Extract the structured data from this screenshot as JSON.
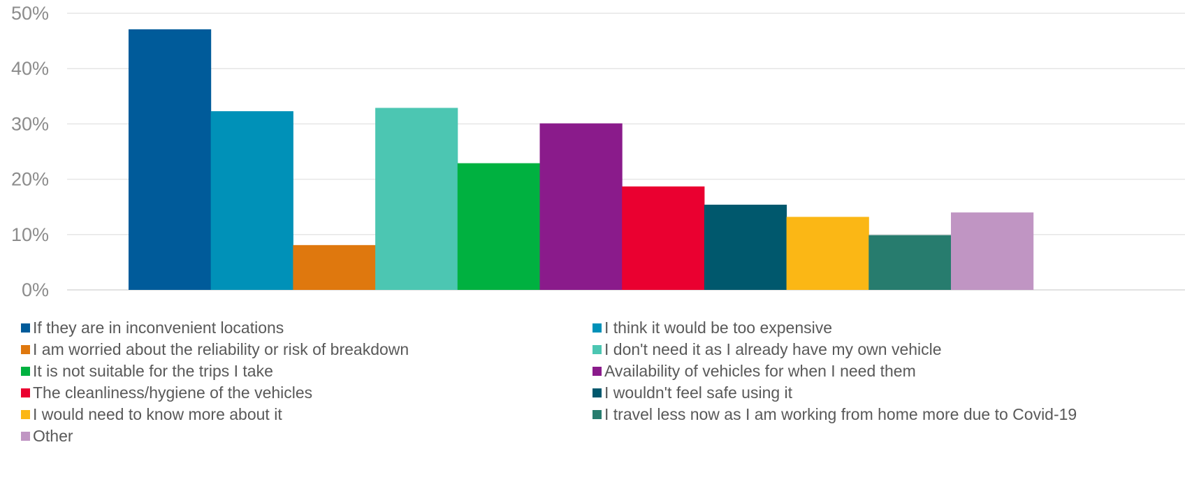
{
  "chart_data": {
    "type": "bar",
    "title": "",
    "xlabel": "",
    "ylabel": "",
    "ylim": [
      0,
      50
    ],
    "y_ticks": [
      "0%",
      "10%",
      "20%",
      "30%",
      "40%",
      "50%"
    ],
    "grid": true,
    "legend_position": "bottom",
    "series": [
      {
        "name": "If they are in inconvenient locations",
        "value": 47.1,
        "color": "#005B9A"
      },
      {
        "name": "I think it would be too expensive",
        "value": 32.3,
        "color": "#0091B8"
      },
      {
        "name": "I am worried about the reliability or risk of breakdown",
        "value": 8.1,
        "color": "#DF780E"
      },
      {
        "name": "I don't need it as I already have my own vehicle",
        "value": 32.9,
        "color": "#4CC6B2"
      },
      {
        "name": "It is not suitable for the trips I take",
        "value": 22.9,
        "color": "#00B140"
      },
      {
        "name": "Availability of vehicles for when I need them",
        "value": 30.1,
        "color": "#8A1B8B"
      },
      {
        "name": "The cleanliness/hygiene of the vehicles",
        "value": 18.7,
        "color": "#EA0030"
      },
      {
        "name": "I wouldn't feel safe using it",
        "value": 15.4,
        "color": "#00586D"
      },
      {
        "name": "I would need to know more about it",
        "value": 13.2,
        "color": "#FBB715"
      },
      {
        "name": "I travel less now as I am working from home more due to Covid-19",
        "value": 9.9,
        "color": "#277C6E"
      },
      {
        "name": "Other",
        "value": 14.0,
        "color": "#C095C3"
      }
    ]
  }
}
